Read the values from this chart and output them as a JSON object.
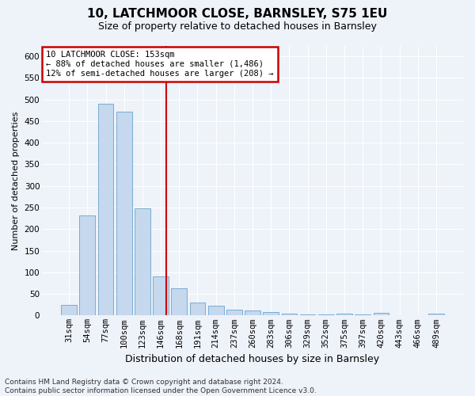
{
  "title": "10, LATCHMOOR CLOSE, BARNSLEY, S75 1EU",
  "subtitle": "Size of property relative to detached houses in Barnsley",
  "xlabel": "Distribution of detached houses by size in Barnsley",
  "ylabel": "Number of detached properties",
  "categories": [
    "31sqm",
    "54sqm",
    "77sqm",
    "100sqm",
    "123sqm",
    "146sqm",
    "168sqm",
    "191sqm",
    "214sqm",
    "237sqm",
    "260sqm",
    "283sqm",
    "306sqm",
    "329sqm",
    "352sqm",
    "375sqm",
    "397sqm",
    "420sqm",
    "443sqm",
    "466sqm",
    "489sqm"
  ],
  "values": [
    25,
    232,
    490,
    472,
    248,
    90,
    63,
    30,
    23,
    13,
    11,
    8,
    5,
    3,
    3,
    5,
    3,
    7,
    0,
    0,
    5
  ],
  "bar_color": "#c5d8ed",
  "bar_edge_color": "#7aadd4",
  "vline_color": "#cc0000",
  "annotation_text": "10 LATCHMOOR CLOSE: 153sqm\n← 88% of detached houses are smaller (1,486)\n12% of semi-detached houses are larger (208) →",
  "annotation_box_color": "#ffffff",
  "annotation_box_edge": "#cc0000",
  "footer": "Contains HM Land Registry data © Crown copyright and database right 2024.\nContains public sector information licensed under the Open Government Licence v3.0.",
  "ylim": [
    0,
    625
  ],
  "yticks": [
    0,
    50,
    100,
    150,
    200,
    250,
    300,
    350,
    400,
    450,
    500,
    550,
    600
  ],
  "bg_color": "#eef2f9",
  "plot_bg": "#eef2f9",
  "grid_color": "#ffffff",
  "title_fontsize": 11,
  "subtitle_fontsize": 9,
  "ylabel_fontsize": 8,
  "xlabel_fontsize": 9,
  "tick_fontsize": 7.5,
  "footer_fontsize": 6.5
}
